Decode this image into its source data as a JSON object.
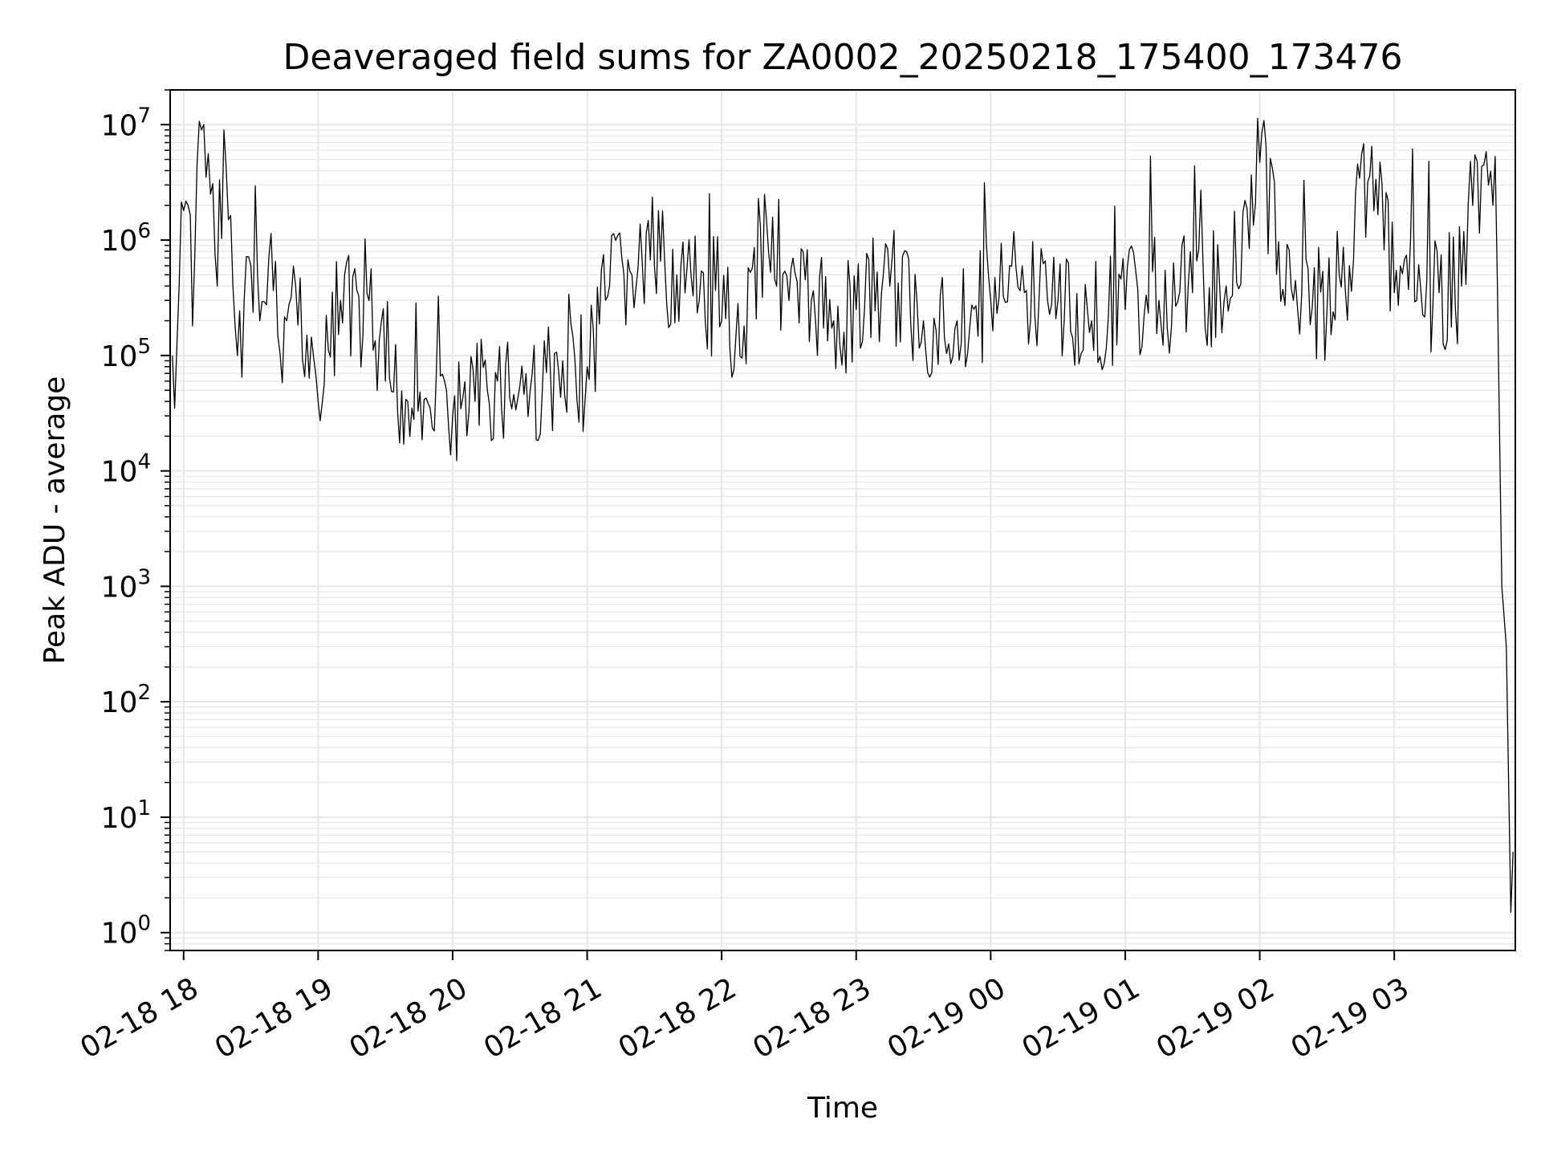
{
  "chart_data": {
    "type": "line",
    "title": "Deaveraged field sums for ZA0002_20250218_175400_173476",
    "xlabel": "Time",
    "ylabel": "Peak ADU - average",
    "y_scale": "log",
    "ylim": [
      0.7,
      20000000
    ],
    "xlim": [
      "2025-02-18 17:54",
      "2025-02-19 03:54"
    ],
    "grid": true,
    "line_color": "#000000",
    "grid_color": "#e6e6e6",
    "x_ticks": [
      {
        "label": "02-18 18",
        "time": "2025-02-18 18:00"
      },
      {
        "label": "02-18 19",
        "time": "2025-02-18 19:00"
      },
      {
        "label": "02-18 20",
        "time": "2025-02-18 20:00"
      },
      {
        "label": "02-18 21",
        "time": "2025-02-18 21:00"
      },
      {
        "label": "02-18 22",
        "time": "2025-02-18 22:00"
      },
      {
        "label": "02-18 23",
        "time": "2025-02-18 23:00"
      },
      {
        "label": "02-19 00",
        "time": "2025-02-19 00:00"
      },
      {
        "label": "02-19 01",
        "time": "2025-02-19 01:00"
      },
      {
        "label": "02-19 02",
        "time": "2025-02-19 02:00"
      },
      {
        "label": "02-19 03",
        "time": "2025-02-19 03:00"
      }
    ],
    "y_ticks": [
      {
        "base": "10",
        "exp": "0",
        "value": 1
      },
      {
        "base": "10",
        "exp": "1",
        "value": 10
      },
      {
        "base": "10",
        "exp": "2",
        "value": 100
      },
      {
        "base": "10",
        "exp": "3",
        "value": 1000
      },
      {
        "base": "10",
        "exp": "4",
        "value": 10000
      },
      {
        "base": "10",
        "exp": "5",
        "value": 100000
      },
      {
        "base": "10",
        "exp": "6",
        "value": 1000000
      },
      {
        "base": "10",
        "exp": "7",
        "value": 10000000
      }
    ],
    "series": [
      {
        "x": [
          "2025-02-18 17:55",
          "2025-02-18 17:56",
          "2025-02-18 17:58",
          "2025-02-18 18:00",
          "2025-02-18 18:02",
          "2025-02-18 18:04",
          "2025-02-18 18:06",
          "2025-02-18 18:08",
          "2025-02-18 18:10",
          "2025-02-18 18:12",
          "2025-02-18 18:15",
          "2025-02-18 18:18",
          "2025-02-18 18:20",
          "2025-02-18 18:22",
          "2025-02-18 18:24",
          "2025-02-18 18:27",
          "2025-02-18 18:30",
          "2025-02-18 18:34",
          "2025-02-18 18:38",
          "2025-02-18 18:42",
          "2025-02-18 18:46",
          "2025-02-18 18:50",
          "2025-02-18 18:55",
          "2025-02-18 19:00",
          "2025-02-18 19:10",
          "2025-02-18 19:20",
          "2025-02-18 19:30",
          "2025-02-18 19:40",
          "2025-02-18 19:50",
          "2025-02-18 20:00",
          "2025-02-18 20:10",
          "2025-02-18 20:20",
          "2025-02-18 20:30",
          "2025-02-18 20:40",
          "2025-02-18 20:50",
          "2025-02-18 21:00",
          "2025-02-18 21:10",
          "2025-02-18 21:20",
          "2025-02-18 21:30",
          "2025-02-18 21:40",
          "2025-02-18 21:50",
          "2025-02-18 22:00",
          "2025-02-18 22:10",
          "2025-02-18 22:20",
          "2025-02-18 22:30",
          "2025-02-18 22:40",
          "2025-02-18 22:50",
          "2025-02-18 23:00",
          "2025-02-18 23:15",
          "2025-02-18 23:30",
          "2025-02-18 23:45",
          "2025-02-19 00:00",
          "2025-02-19 00:15",
          "2025-02-19 00:30",
          "2025-02-19 00:45",
          "2025-02-19 01:00",
          "2025-02-19 01:15",
          "2025-02-19 01:30",
          "2025-02-19 01:45",
          "2025-02-19 02:00",
          "2025-02-19 02:15",
          "2025-02-19 02:30",
          "2025-02-19 02:40",
          "2025-02-19 02:50",
          "2025-02-19 03:00",
          "2025-02-19 03:10",
          "2025-02-19 03:20",
          "2025-02-19 03:30",
          "2025-02-19 03:35",
          "2025-02-19 03:40",
          "2025-02-19 03:42",
          "2025-02-19 03:44",
          "2025-02-19 03:46",
          "2025-02-19 03:48",
          "2025-02-19 03:50",
          "2025-02-19 03:52",
          "2025-02-19 03:53"
        ],
        "y": [
          100000,
          35000,
          400000,
          1800000,
          2000000,
          180000,
          4500000,
          9000000,
          3500000,
          2500000,
          400000,
          9000000,
          1500000,
          400000,
          100000,
          300000,
          600000,
          200000,
          700000,
          150000,
          200000,
          400000,
          150000,
          40000,
          300000,
          150000,
          60000,
          40000,
          35000,
          30000,
          40000,
          60000,
          55000,
          50000,
          45000,
          80000,
          400000,
          500000,
          600000,
          500000,
          300000,
          200000,
          180000,
          1500000,
          300000,
          300000,
          200000,
          250000,
          400000,
          200000,
          200000,
          300000,
          350000,
          300000,
          200000,
          250000,
          300000,
          350000,
          400000,
          4700000,
          300000,
          250000,
          600000,
          6500000,
          350000,
          300000,
          350000,
          400000,
          2000000,
          4500000,
          3000000,
          2000000,
          400000,
          1000,
          300,
          1.5,
          5
        ]
      }
    ]
  }
}
